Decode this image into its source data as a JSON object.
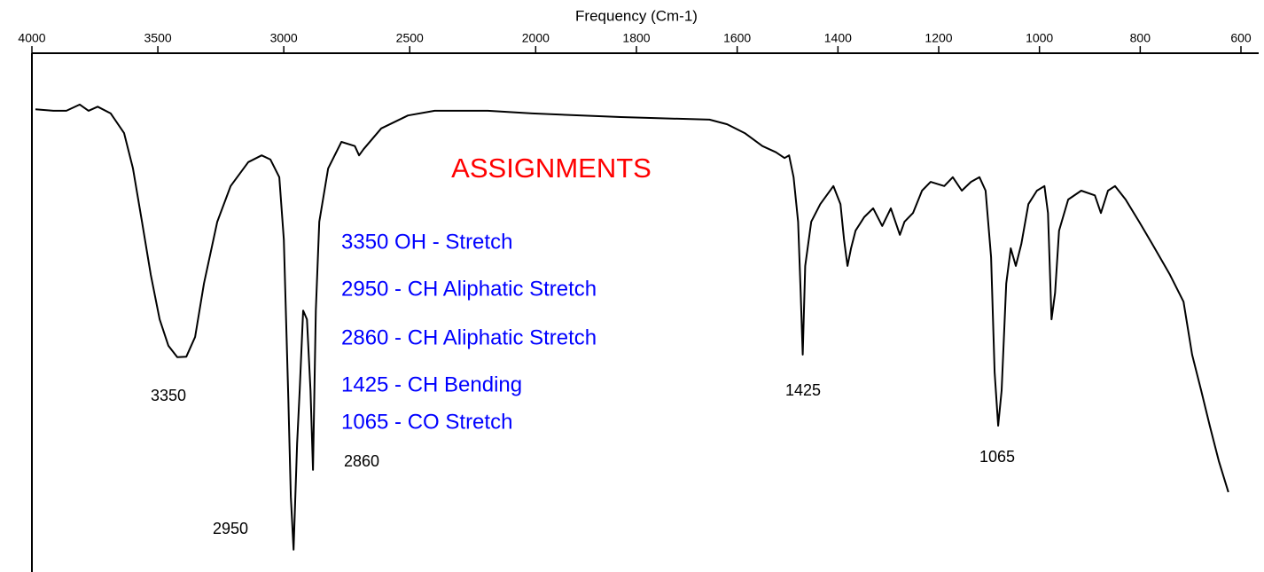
{
  "chart_data": {
    "type": "line",
    "x_label": "Frequency (Cm-1)",
    "xlim": [
      4000,
      600
    ],
    "xticks": [
      4000,
      3500,
      3000,
      2500,
      2000,
      1800,
      1600,
      1400,
      1200,
      1000,
      800,
      600
    ],
    "x_break": 2000,
    "ylim": [
      0,
      100
    ],
    "color": "#000000",
    "x": [
      3986,
      3915,
      3863,
      3810,
      3775,
      3739,
      3687,
      3634,
      3599,
      3563,
      3528,
      3493,
      3458,
      3423,
      3387,
      3352,
      3317,
      3264,
      3211,
      3141,
      3088,
      3053,
      3018,
      3000,
      2982,
      2972,
      2961,
      2947,
      2937,
      2923,
      2908,
      2894,
      2884,
      2873,
      2859,
      2824,
      2771,
      2718,
      2701,
      2683,
      2613,
      2507,
      2401,
      2190,
      2014,
      1831,
      1655,
      1620,
      1585,
      1550,
      1523,
      1506,
      1497,
      1488,
      1479,
      1474,
      1470,
      1465,
      1453,
      1435,
      1409,
      1395,
      1388,
      1381,
      1374,
      1365,
      1348,
      1330,
      1312,
      1295,
      1277,
      1268,
      1251,
      1233,
      1216,
      1189,
      1172,
      1154,
      1136,
      1119,
      1107,
      1096,
      1089,
      1082,
      1075,
      1066,
      1057,
      1047,
      1036,
      1022,
      1005,
      990,
      983,
      976,
      969,
      961,
      943,
      917,
      890,
      878,
      864,
      850,
      829,
      802,
      776,
      741,
      714,
      697,
      679,
      662,
      644,
      625
    ],
    "values": [
      89.2,
      88.9,
      88.9,
      90.1,
      88.9,
      89.7,
      88.4,
      84.6,
      77.8,
      67.5,
      57.3,
      48.7,
      43.6,
      41.4,
      41.5,
      45.3,
      55.6,
      67.5,
      74.4,
      79.0,
      80.3,
      79.5,
      76.1,
      64.1,
      33.3,
      14.5,
      4.3,
      24.8,
      35.0,
      50.4,
      48.7,
      35.0,
      19.7,
      50.4,
      67.5,
      77.8,
      82.9,
      82.1,
      80.3,
      81.5,
      85.5,
      88.0,
      88.9,
      88.9,
      88.4,
      87.7,
      87.2,
      86.3,
      84.6,
      82.1,
      80.9,
      79.8,
      80.3,
      76.1,
      67.5,
      53.8,
      41.9,
      59.0,
      67.5,
      70.9,
      74.4,
      70.9,
      64.1,
      59.0,
      62.4,
      65.8,
      68.4,
      70.1,
      66.7,
      70.1,
      65.0,
      67.5,
      69.2,
      73.5,
      75.2,
      74.4,
      76.1,
      73.5,
      75.2,
      76.1,
      73.5,
      60.7,
      38.5,
      28.2,
      35.0,
      55.6,
      62.4,
      59.0,
      63.2,
      70.9,
      73.5,
      74.4,
      69.2,
      48.7,
      53.8,
      65.8,
      71.8,
      73.5,
      72.6,
      69.2,
      73.5,
      74.4,
      71.8,
      67.5,
      63.2,
      57.3,
      52.1,
      41.9,
      35.0,
      28.2,
      21.4,
      15.4
    ],
    "peak_labels": [
      "3350",
      "2950",
      "2860",
      "1425",
      "1065"
    ],
    "assignments_title": "ASSIGNMENTS",
    "assignments_title_color": "#ff0000",
    "assignments": [
      "3350 OH - Stretch",
      "2950 - CH Aliphatic Stretch",
      "2860 - CH Aliphatic Stretch",
      "1425 - CH Bending",
      "1065 - CO Stretch"
    ],
    "assignments_color": "#0000ff"
  }
}
